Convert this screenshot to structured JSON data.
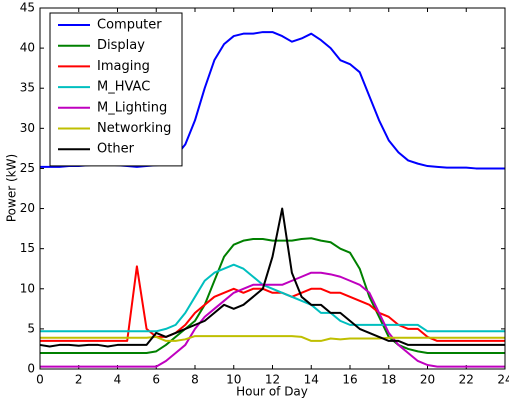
{
  "chart_data": {
    "type": "line",
    "xlabel": "Hour of Day",
    "ylabel": "Power (kW)",
    "x": [
      0,
      0.5,
      1,
      1.5,
      2,
      2.5,
      3,
      3.5,
      4,
      4.5,
      5,
      5.5,
      6,
      6.5,
      7,
      7.5,
      8,
      8.5,
      9,
      9.5,
      10,
      10.5,
      11,
      11.5,
      12,
      12.5,
      13,
      13.5,
      14,
      14.5,
      15,
      15.5,
      16,
      16.5,
      17,
      17.5,
      18,
      18.5,
      19,
      19.5,
      20,
      20.5,
      21,
      21.5,
      22,
      22.5,
      23,
      23.5,
      24
    ],
    "xlim": [
      0,
      24
    ],
    "xticks": [
      0,
      2,
      4,
      6,
      8,
      10,
      12,
      14,
      16,
      18,
      20,
      22,
      24
    ],
    "ylim": [
      0,
      45
    ],
    "yticks": [
      0,
      5,
      10,
      15,
      20,
      25,
      30,
      35,
      40,
      45
    ],
    "grid": false,
    "legend": "upper left",
    "series": [
      {
        "name": "Computer",
        "color": "#0000ff",
        "values": [
          25.2,
          25.2,
          25.2,
          25.3,
          25.3,
          25.4,
          25.5,
          25.5,
          25.4,
          25.3,
          25.2,
          25.3,
          25.4,
          25.5,
          26.5,
          28,
          31,
          35,
          38.5,
          40.5,
          41.5,
          41.8,
          41.8,
          42,
          42,
          41.5,
          40.8,
          41.2,
          41.8,
          41,
          40,
          38.5,
          38,
          37,
          34,
          31,
          28.5,
          27,
          26,
          25.6,
          25.3,
          25.2,
          25.1,
          25.1,
          25.1,
          25,
          25,
          25,
          25
        ]
      },
      {
        "name": "Display",
        "color": "#008000",
        "values": [
          2,
          2,
          2,
          2,
          2,
          2,
          2,
          2,
          2,
          2,
          2,
          2,
          2.2,
          3,
          4,
          5,
          6,
          8,
          11,
          14,
          15.5,
          16,
          16.2,
          16.2,
          16,
          16,
          16,
          16.2,
          16.3,
          16,
          15.8,
          15,
          14.5,
          12.5,
          9,
          6.5,
          4,
          3,
          2.5,
          2.2,
          2,
          2,
          2,
          2,
          2,
          2,
          2,
          2,
          2
        ]
      },
      {
        "name": "Imaging",
        "color": "#ff0000",
        "values": [
          3.5,
          3.5,
          3.5,
          3.5,
          3.5,
          3.5,
          3.5,
          3.5,
          3.5,
          3.5,
          12.8,
          5,
          4,
          4,
          4.5,
          5.5,
          7,
          8,
          9,
          9.5,
          10,
          9.5,
          10,
          10,
          9.5,
          9.5,
          9,
          9.5,
          10,
          10,
          9.5,
          9.5,
          9,
          8.5,
          8,
          7,
          6.5,
          5.5,
          5,
          5,
          4,
          3.5,
          3.5,
          3.5,
          3.5,
          3.5,
          3.5,
          3.5,
          3.5
        ]
      },
      {
        "name": "M_HVAC",
        "color": "#00bfbf",
        "values": [
          4.7,
          4.7,
          4.7,
          4.7,
          4.7,
          4.7,
          4.7,
          4.7,
          4.7,
          4.7,
          4.7,
          4.7,
          4.7,
          5,
          5.5,
          7,
          9,
          11,
          12,
          12.5,
          13,
          12.5,
          11.5,
          10.5,
          10,
          9.5,
          9,
          8.5,
          8,
          7,
          7,
          6,
          5.5,
          5.5,
          5.5,
          5.5,
          5.5,
          5.5,
          5.5,
          5.5,
          4.7,
          4.7,
          4.7,
          4.7,
          4.7,
          4.7,
          4.7,
          4.7,
          4.7
        ]
      },
      {
        "name": "M_Lighting",
        "color": "#bf00bf",
        "values": [
          0.3,
          0.3,
          0.3,
          0.3,
          0.3,
          0.3,
          0.3,
          0.3,
          0.3,
          0.3,
          0.3,
          0.3,
          0.3,
          1,
          2,
          3,
          5,
          6.5,
          7.5,
          8.5,
          9.5,
          10,
          10.5,
          10.5,
          10.5,
          10.5,
          11,
          11.5,
          12,
          12,
          11.8,
          11.5,
          11,
          10.5,
          9.5,
          7,
          4.5,
          3,
          2,
          1,
          0.5,
          0.3,
          0.3,
          0.3,
          0.3,
          0.3,
          0.3,
          0.3,
          0.3
        ]
      },
      {
        "name": "Networking",
        "color": "#bfbf00",
        "values": [
          3.9,
          3.9,
          3.9,
          3.9,
          3.9,
          3.9,
          3.9,
          3.9,
          3.9,
          3.9,
          3.9,
          3.9,
          4,
          3.5,
          3.5,
          3.7,
          4.1,
          4.1,
          4.1,
          4.1,
          4.1,
          4.1,
          4.1,
          4.1,
          4.1,
          4.1,
          4.1,
          4,
          3.5,
          3.5,
          3.8,
          3.7,
          3.8,
          3.8,
          3.8,
          3.8,
          3.9,
          3.9,
          3.9,
          3.9,
          3.9,
          3.9,
          3.9,
          3.9,
          3.9,
          3.9,
          3.9,
          3.9,
          3.9
        ]
      },
      {
        "name": "Other",
        "color": "#000000",
        "values": [
          3,
          2.8,
          3,
          3,
          2.9,
          3,
          3,
          2.8,
          3,
          3,
          3,
          3,
          4.5,
          4,
          4.5,
          5,
          5.5,
          6,
          7,
          8,
          7.5,
          8,
          9,
          10,
          14,
          20,
          12,
          9,
          8,
          8,
          7,
          7,
          6,
          5,
          4.5,
          4,
          3.5,
          3.5,
          3,
          3,
          3,
          3,
          3,
          3,
          3,
          3,
          3,
          3,
          3
        ]
      }
    ]
  }
}
